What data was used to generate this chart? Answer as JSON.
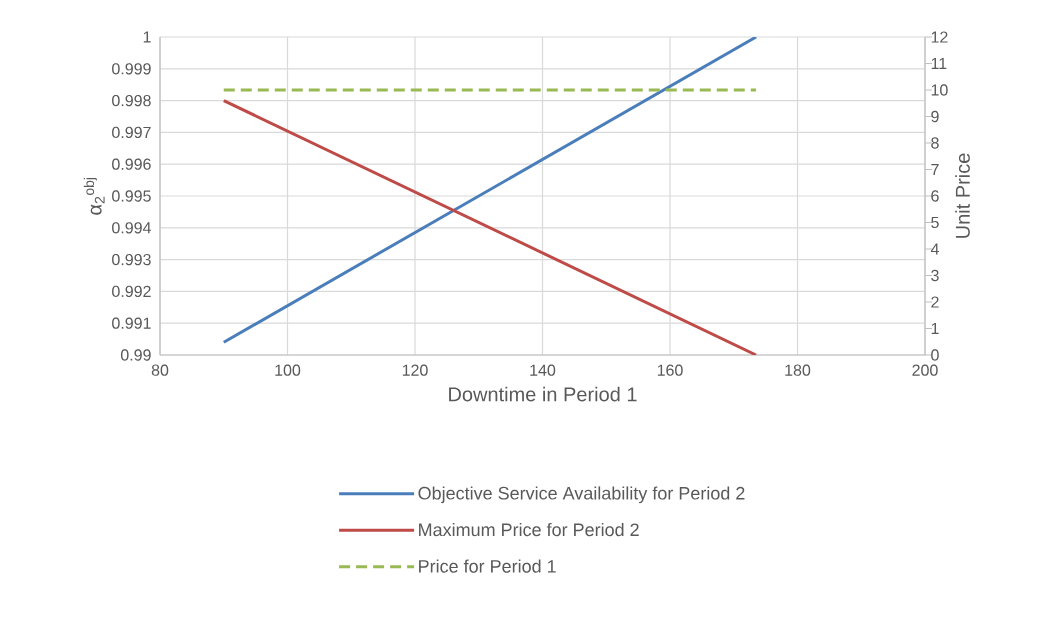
{
  "chart_data": {
    "type": "line",
    "xlabel": "Downtime in Period 1",
    "ylabel": "α$_{2}$$^{obj}$",
    "y2label": "Unit Price",
    "xlim": [
      80,
      200
    ],
    "xticks": [
      80,
      100,
      120,
      140,
      160,
      180,
      200
    ],
    "ylim": [
      0.99,
      1
    ],
    "yticks": [
      0.99,
      0.991,
      0.992,
      0.993,
      0.994,
      0.995,
      0.996,
      0.997,
      0.998,
      0.999,
      1
    ],
    "y2lim": [
      0,
      12
    ],
    "y2ticks": [
      0,
      1,
      2,
      3,
      4,
      5,
      6,
      7,
      8,
      9,
      10,
      11,
      12
    ],
    "grid": true,
    "legend": "bottom",
    "x": [
      90,
      173.5
    ],
    "series": [
      {
        "name": "Objective Service Availability for Period 2",
        "color": "#4a7ebb",
        "values": [
          0.9904,
          1
        ],
        "line_style": "solid"
      },
      {
        "name": "Maximum Price for Period 2",
        "color": "#be4b48",
        "values": [
          9.6,
          0
        ],
        "axis": "y2",
        "line_style": "solid"
      },
      {
        "name": "Price for Period 1",
        "color": "#98b954",
        "values": [
          10,
          10
        ],
        "axis": "y2",
        "line_style": "dashed"
      }
    ]
  }
}
